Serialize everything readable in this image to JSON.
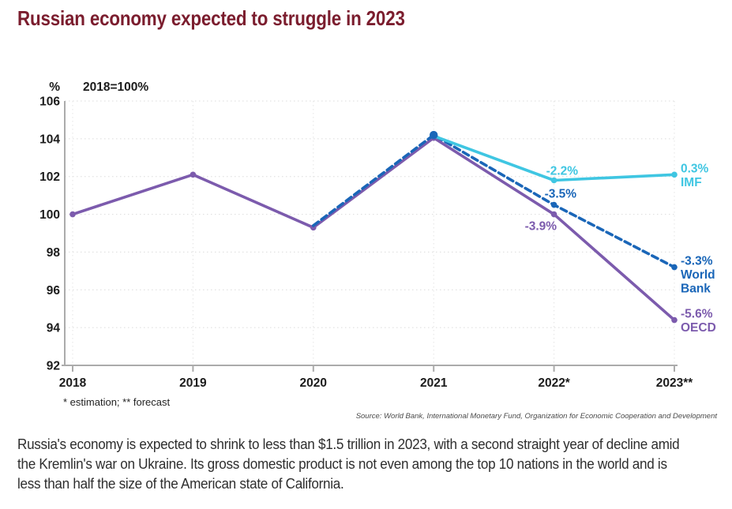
{
  "title": "Russian economy expected to struggle in 2023",
  "accent_color": "#7b1d2e",
  "chart_data": {
    "type": "line",
    "unit_label": "%",
    "index_note": "2018=100%",
    "categories": [
      "2018",
      "2019",
      "2020",
      "2021",
      "2022*",
      "2023**"
    ],
    "ylim": [
      92,
      106
    ],
    "yticks": [
      106,
      104,
      102,
      100,
      98,
      96,
      94,
      92
    ],
    "grid": true,
    "legend_position": "right-of-line-labels",
    "series": [
      {
        "name": "OECD",
        "color": "#7c5bad",
        "style": "solid",
        "x_start_index": 0,
        "values": [
          100,
          102.1,
          99.3,
          104.05,
          100,
          94.4
        ]
      },
      {
        "name": "World Bank",
        "color": "#1a66b8",
        "style": "dashed",
        "x_start_index": 2,
        "values": [
          99.4,
          104.2,
          100.5,
          97.2
        ]
      },
      {
        "name": "IMF",
        "color": "#3fc6e2",
        "style": "solid",
        "x_start_index": 3,
        "values": [
          104.15,
          101.8,
          102.1
        ]
      }
    ],
    "annotations": [
      {
        "series": "IMF",
        "category": "2022*",
        "text": "-2.2%"
      },
      {
        "series": "World Bank",
        "category": "2022*",
        "text": "-3.5%"
      },
      {
        "series": "OECD",
        "category": "2022*",
        "text": "-3.9%"
      },
      {
        "series": "IMF",
        "category": "2023**",
        "lines": [
          "0.3%",
          "IMF"
        ]
      },
      {
        "series": "World Bank",
        "category": "2023**",
        "lines": [
          "-3.3%",
          "World",
          "Bank"
        ]
      },
      {
        "series": "OECD",
        "category": "2023**",
        "lines": [
          "-5.6%",
          "OECD"
        ]
      }
    ],
    "footnote": "* estimation; ** forecast",
    "source": "Source: World Bank, International Monetary Fund, Organization for Economic Cooperation and Development"
  },
  "caption_lines": [
    "Russia's economy is expected to shrink to less than $1.5 trillion in 2023, with a second straight year of decline amid",
    "the Kremlin's war on Ukraine. Its gross domestic product is not even among the top 10 nations in the world and is",
    "less than half the size of the American state of California."
  ]
}
